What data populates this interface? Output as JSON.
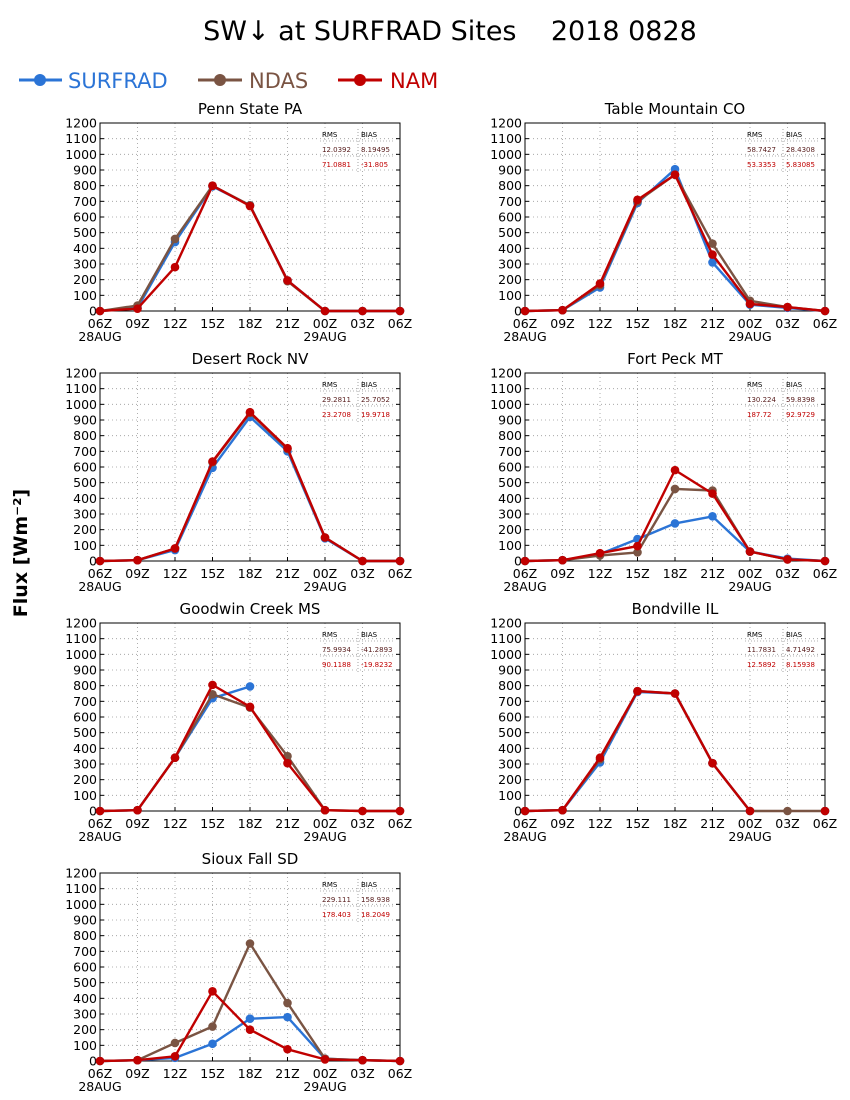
{
  "title": "SW↓ at SURFRAD Sites    2018 0828",
  "y_axis_label": "Flux [Wm⁻²]",
  "colors": {
    "SURFRAD": "#2b74d6",
    "NDAS": "#7a5443",
    "NAM": "#c00000",
    "stat_dark": "#5a2020",
    "grid": "#9a9a9a"
  },
  "stats_headers": {
    "rms": "RMS",
    "bias": "BIAS"
  },
  "legend": [
    {
      "name": "SURFRAD",
      "color": "#2b74d6"
    },
    {
      "name": "NDAS",
      "color": "#7a5443"
    },
    {
      "name": "NAM",
      "color": "#c00000"
    }
  ],
  "chart_data": [
    {
      "type": "line",
      "title": "Penn State PA",
      "x": [
        "06Z",
        "09Z",
        "12Z",
        "15Z",
        "18Z",
        "21Z",
        "00Z",
        "03Z",
        "06Z"
      ],
      "x_date_labels": [
        [
          "28AUG",
          0
        ],
        [
          "29AUG",
          6
        ]
      ],
      "ylim": [
        0,
        1200
      ],
      "y_ticks": [
        0,
        100,
        200,
        300,
        400,
        500,
        600,
        700,
        800,
        900,
        1000,
        1100,
        1200
      ],
      "grid": true,
      "series": [
        {
          "name": "SURFRAD",
          "values": [
            0,
            20,
            440,
            795,
            675,
            195,
            0,
            0,
            0
          ]
        },
        {
          "name": "NDAS",
          "values": [
            0,
            35,
            460,
            800,
            675,
            190,
            0,
            0,
            0
          ]
        },
        {
          "name": "NAM",
          "values": [
            0,
            15,
            280,
            800,
            670,
            195,
            0,
            0,
            0
          ]
        }
      ],
      "stats": {
        "ndas": [
          "12.0392",
          "8.19495"
        ],
        "nam": [
          "71.0881",
          "-31.805"
        ]
      }
    },
    {
      "type": "line",
      "title": "Table Mountain CO",
      "x": [
        "06Z",
        "09Z",
        "12Z",
        "15Z",
        "18Z",
        "21Z",
        "00Z",
        "03Z",
        "06Z"
      ],
      "x_date_labels": [
        [
          "28AUG",
          0
        ],
        [
          "29AUG",
          6
        ]
      ],
      "ylim": [
        0,
        1200
      ],
      "y_ticks": [
        0,
        100,
        200,
        300,
        400,
        500,
        600,
        700,
        800,
        900,
        1000,
        1100,
        1200
      ],
      "grid": true,
      "series": [
        {
          "name": "SURFRAD",
          "values": [
            0,
            5,
            150,
            690,
            905,
            310,
            40,
            20,
            0
          ]
        },
        {
          "name": "NDAS",
          "values": [
            0,
            5,
            165,
            700,
            870,
            430,
            65,
            25,
            0
          ]
        },
        {
          "name": "NAM",
          "values": [
            0,
            5,
            175,
            710,
            870,
            360,
            45,
            25,
            0
          ]
        }
      ],
      "stats": {
        "ndas": [
          "58.7427",
          "28.4308"
        ],
        "nam": [
          "53.3353",
          "5.83085"
        ]
      }
    },
    {
      "type": "line",
      "title": "Desert Rock NV",
      "x": [
        "06Z",
        "09Z",
        "12Z",
        "15Z",
        "18Z",
        "21Z",
        "00Z",
        "03Z",
        "06Z"
      ],
      "x_date_labels": [
        [
          "28AUG",
          0
        ],
        [
          "29AUG",
          6
        ]
      ],
      "ylim": [
        0,
        1200
      ],
      "y_ticks": [
        0,
        100,
        200,
        300,
        400,
        500,
        600,
        700,
        800,
        900,
        1000,
        1100,
        1200
      ],
      "grid": true,
      "series": [
        {
          "name": "SURFRAD",
          "values": [
            0,
            5,
            70,
            595,
            920,
            700,
            145,
            0,
            0
          ]
        },
        {
          "name": "NDAS",
          "values": [
            0,
            5,
            80,
            630,
            945,
            715,
            150,
            0,
            0
          ]
        },
        {
          "name": "NAM",
          "values": [
            0,
            5,
            80,
            635,
            950,
            720,
            150,
            0,
            0
          ]
        }
      ],
      "stats": {
        "ndas": [
          "29.2811",
          "25.7052"
        ],
        "nam": [
          "23.2708",
          "19.9718"
        ]
      }
    },
    {
      "type": "line",
      "title": "Fort Peck MT",
      "x": [
        "06Z",
        "09Z",
        "12Z",
        "15Z",
        "18Z",
        "21Z",
        "00Z",
        "03Z",
        "06Z"
      ],
      "x_date_labels": [
        [
          "28AUG",
          0
        ],
        [
          "29AUG",
          6
        ]
      ],
      "ylim": [
        0,
        1200
      ],
      "y_ticks": [
        0,
        100,
        200,
        300,
        400,
        500,
        600,
        700,
        800,
        900,
        1000,
        1100,
        1200
      ],
      "grid": true,
      "series": [
        {
          "name": "SURFRAD",
          "values": [
            0,
            5,
            45,
            140,
            240,
            285,
            60,
            15,
            0
          ]
        },
        {
          "name": "NDAS",
          "values": [
            0,
            5,
            35,
            55,
            460,
            450,
            60,
            10,
            0
          ]
        },
        {
          "name": "NAM",
          "values": [
            0,
            5,
            50,
            95,
            580,
            430,
            60,
            10,
            0
          ]
        }
      ],
      "stats": {
        "ndas": [
          "130.224",
          "59.8398"
        ],
        "nam": [
          "187.72",
          "92.9729"
        ]
      }
    },
    {
      "type": "line",
      "title": "Goodwin Creek MS",
      "x": [
        "06Z",
        "09Z",
        "12Z",
        "15Z",
        "18Z",
        "21Z",
        "00Z",
        "03Z",
        "06Z"
      ],
      "x_date_labels": [
        [
          "28AUG",
          0
        ],
        [
          "29AUG",
          6
        ]
      ],
      "ylim": [
        0,
        1200
      ],
      "y_ticks": [
        0,
        100,
        200,
        300,
        400,
        500,
        600,
        700,
        800,
        900,
        1000,
        1100,
        1200
      ],
      "grid": true,
      "series": [
        {
          "name": "SURFRAD",
          "values": [
            0,
            5,
            340,
            720,
            795,
            null,
            null,
            null,
            null
          ]
        },
        {
          "name": "NDAS",
          "values": [
            0,
            5,
            340,
            745,
            660,
            350,
            5,
            0,
            0
          ]
        },
        {
          "name": "NAM",
          "values": [
            0,
            5,
            340,
            805,
            665,
            305,
            5,
            0,
            0
          ]
        }
      ],
      "stats": {
        "ndas": [
          "75.9934",
          "-41.2893"
        ],
        "nam": [
          "90.1188",
          "-19.8232"
        ]
      }
    },
    {
      "type": "line",
      "title": "Bondville IL",
      "x": [
        "06Z",
        "09Z",
        "12Z",
        "15Z",
        "18Z",
        "21Z",
        "00Z",
        "03Z",
        "06Z"
      ],
      "x_date_labels": [
        [
          "28AUG",
          0
        ],
        [
          "29AUG",
          6
        ]
      ],
      "ylim": [
        0,
        1200
      ],
      "y_ticks": [
        0,
        100,
        200,
        300,
        400,
        500,
        600,
        700,
        800,
        900,
        1000,
        1100,
        1200
      ],
      "grid": true,
      "series": [
        {
          "name": "SURFRAD",
          "values": [
            0,
            5,
            310,
            760,
            750,
            305,
            0,
            null,
            0
          ]
        },
        {
          "name": "NDAS",
          "values": [
            0,
            5,
            330,
            765,
            750,
            305,
            0,
            0,
            0
          ]
        },
        {
          "name": "NAM",
          "values": [
            0,
            5,
            340,
            765,
            750,
            305,
            0,
            null,
            0
          ]
        }
      ],
      "stats": {
        "ndas": [
          "11.7831",
          "4.71492"
        ],
        "nam": [
          "12.5892",
          "8.15938"
        ]
      }
    },
    {
      "type": "line",
      "title": "Sioux Fall SD",
      "x": [
        "06Z",
        "09Z",
        "12Z",
        "15Z",
        "18Z",
        "21Z",
        "00Z",
        "03Z",
        "06Z"
      ],
      "x_date_labels": [
        [
          "28AUG",
          0
        ],
        [
          "29AUG",
          6
        ]
      ],
      "ylim": [
        0,
        1200
      ],
      "y_ticks": [
        0,
        100,
        200,
        300,
        400,
        500,
        600,
        700,
        800,
        900,
        1000,
        1100,
        1200
      ],
      "grid": true,
      "series": [
        {
          "name": "SURFRAD",
          "values": [
            0,
            5,
            20,
            110,
            270,
            280,
            15,
            5,
            0
          ]
        },
        {
          "name": "NDAS",
          "values": [
            0,
            5,
            115,
            220,
            750,
            370,
            15,
            5,
            0
          ]
        },
        {
          "name": "NAM",
          "values": [
            0,
            5,
            30,
            445,
            200,
            75,
            10,
            5,
            0
          ]
        }
      ],
      "stats": {
        "ndas": [
          "229.111",
          "158.938"
        ],
        "nam": [
          "178.403",
          "18.2049"
        ]
      }
    }
  ]
}
